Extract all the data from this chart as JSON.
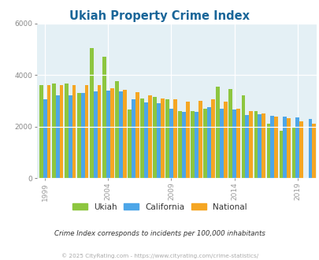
{
  "title": "Ukiah Property Crime Index",
  "title_color": "#1a6699",
  "subtitle": "Crime Index corresponds to incidents per 100,000 inhabitants",
  "footer": "© 2025 CityRating.com - https://www.cityrating.com/crime-statistics/",
  "years": [
    1999,
    2000,
    2001,
    2002,
    2003,
    2004,
    2005,
    2006,
    2007,
    2008,
    2009,
    2010,
    2011,
    2012,
    2013,
    2014,
    2015,
    2016,
    2017,
    2018,
    2019,
    2020
  ],
  "ukiah": [
    3600,
    3680,
    3680,
    3300,
    5050,
    4700,
    3750,
    2650,
    3100,
    3150,
    3050,
    2600,
    2600,
    2700,
    3550,
    3450,
    3200,
    2600,
    2100,
    1850,
    1950,
    0
  ],
  "california": [
    3050,
    3200,
    3200,
    3300,
    3350,
    3400,
    3350,
    3050,
    2950,
    2900,
    2680,
    2580,
    2580,
    2750,
    2700,
    2650,
    2450,
    2480,
    2410,
    2380,
    2350,
    2280
  ],
  "national": [
    3620,
    3620,
    3620,
    3620,
    3620,
    3500,
    3420,
    3320,
    3200,
    3100,
    3050,
    2980,
    3000,
    3050,
    2980,
    2700,
    2600,
    2500,
    2400,
    2310,
    2200,
    2100
  ],
  "colors": {
    "ukiah": "#8dc63f",
    "california": "#4da6e8",
    "national": "#f5a623"
  },
  "bg_color": "#e4f0f5",
  "ylim": [
    0,
    6000
  ],
  "yticks": [
    0,
    2000,
    4000,
    6000
  ],
  "xtick_years": [
    1999,
    2004,
    2009,
    2014,
    2019
  ],
  "legend_labels": [
    "Ukiah",
    "California",
    "National"
  ]
}
